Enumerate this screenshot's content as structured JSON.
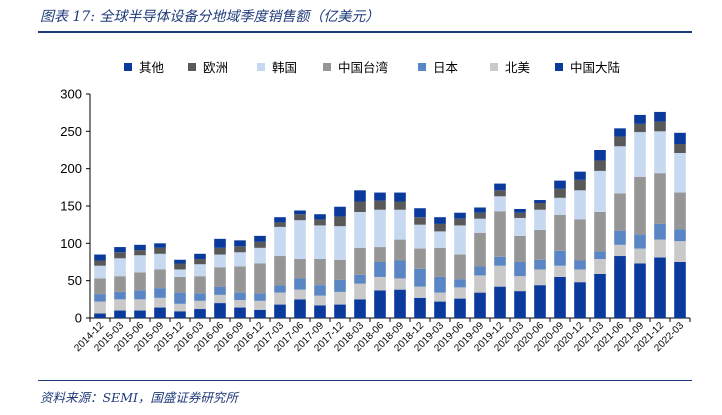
{
  "title": "图表 17:  全球半导体设备分地域季度销售额（亿美元）",
  "source": "资料来源：SEMI，国盛证券研究所",
  "chart_data": {
    "type": "bar",
    "stacked": true,
    "ylim": [
      0,
      300
    ],
    "yticks": [
      0,
      50,
      100,
      150,
      200,
      250,
      300
    ],
    "legend_position": "top",
    "categories": [
      "2014-12",
      "2015-03",
      "2015-06",
      "2015-09",
      "2015-12",
      "2016-03",
      "2016-06",
      "2016-09",
      "2016-12",
      "2017-03",
      "2017-06",
      "2017-09",
      "2017-12",
      "2018-03",
      "2018-06",
      "2018-09",
      "2018-12",
      "2019-03",
      "2019-06",
      "2019-09",
      "2019-12",
      "2020-03",
      "2020-06",
      "2020-09",
      "2020-12",
      "2021-03",
      "2021-06",
      "2021-09",
      "2021-12",
      "2022-03"
    ],
    "series": [
      {
        "name": "中国大陆",
        "color": "#0a3a9c",
        "values": [
          6,
          10,
          10,
          14,
          9,
          12,
          20,
          14,
          11,
          18,
          25,
          17,
          18,
          25,
          37,
          38,
          27,
          22,
          26,
          34,
          42,
          36,
          44,
          55,
          48,
          59,
          83,
          73,
          81,
          75
        ]
      },
      {
        "name": "北美",
        "color": "#c9c9c9",
        "values": [
          16,
          15,
          15,
          13,
          10,
          11,
          11,
          10,
          12,
          16,
          13,
          13,
          17,
          21,
          18,
          15,
          15,
          12,
          15,
          23,
          28,
          20,
          21,
          15,
          17,
          20,
          15,
          20,
          24,
          28
        ]
      },
      {
        "name": "日本",
        "color": "#5a86c5",
        "values": [
          10,
          10,
          12,
          13,
          15,
          10,
          11,
          10,
          10,
          10,
          15,
          14,
          16,
          12,
          20,
          24,
          24,
          21,
          11,
          12,
          12,
          19,
          13,
          20,
          12,
          10,
          19,
          19,
          21,
          16
        ]
      },
      {
        "name": "中国台湾",
        "color": "#969696",
        "values": [
          21,
          21,
          24,
          25,
          21,
          23,
          26,
          35,
          40,
          39,
          26,
          35,
          27,
          36,
          20,
          28,
          27,
          39,
          33,
          45,
          61,
          35,
          40,
          48,
          55,
          53,
          50,
          77,
          68,
          49
        ]
      },
      {
        "name": "韩国",
        "color": "#c6d9f0",
        "values": [
          17,
          24,
          23,
          21,
          10,
          16,
          17,
          19,
          21,
          39,
          52,
          45,
          45,
          48,
          50,
          40,
          32,
          22,
          39,
          19,
          20,
          24,
          27,
          23,
          39,
          55,
          63,
          60,
          56,
          53
        ]
      },
      {
        "name": "欧洲",
        "color": "#595959",
        "values": [
          7,
          8,
          7,
          8,
          8,
          7,
          9,
          8,
          8,
          6,
          8,
          8,
          13,
          14,
          12,
          11,
          10,
          10,
          9,
          8,
          8,
          7,
          9,
          12,
          14,
          14,
          13,
          11,
          13,
          12
        ]
      },
      {
        "name": "其他",
        "color": "#0a3a9c",
        "values": [
          8,
          7,
          7,
          6,
          5,
          7,
          12,
          8,
          8,
          7,
          5,
          7,
          13,
          15,
          11,
          12,
          12,
          9,
          8,
          7,
          9,
          5,
          4,
          11,
          11,
          14,
          11,
          12,
          13,
          15
        ]
      }
    ]
  },
  "legend_order": [
    "其他",
    "欧洲",
    "韩国",
    "中国台湾",
    "日本",
    "北美",
    "中国大陆"
  ]
}
